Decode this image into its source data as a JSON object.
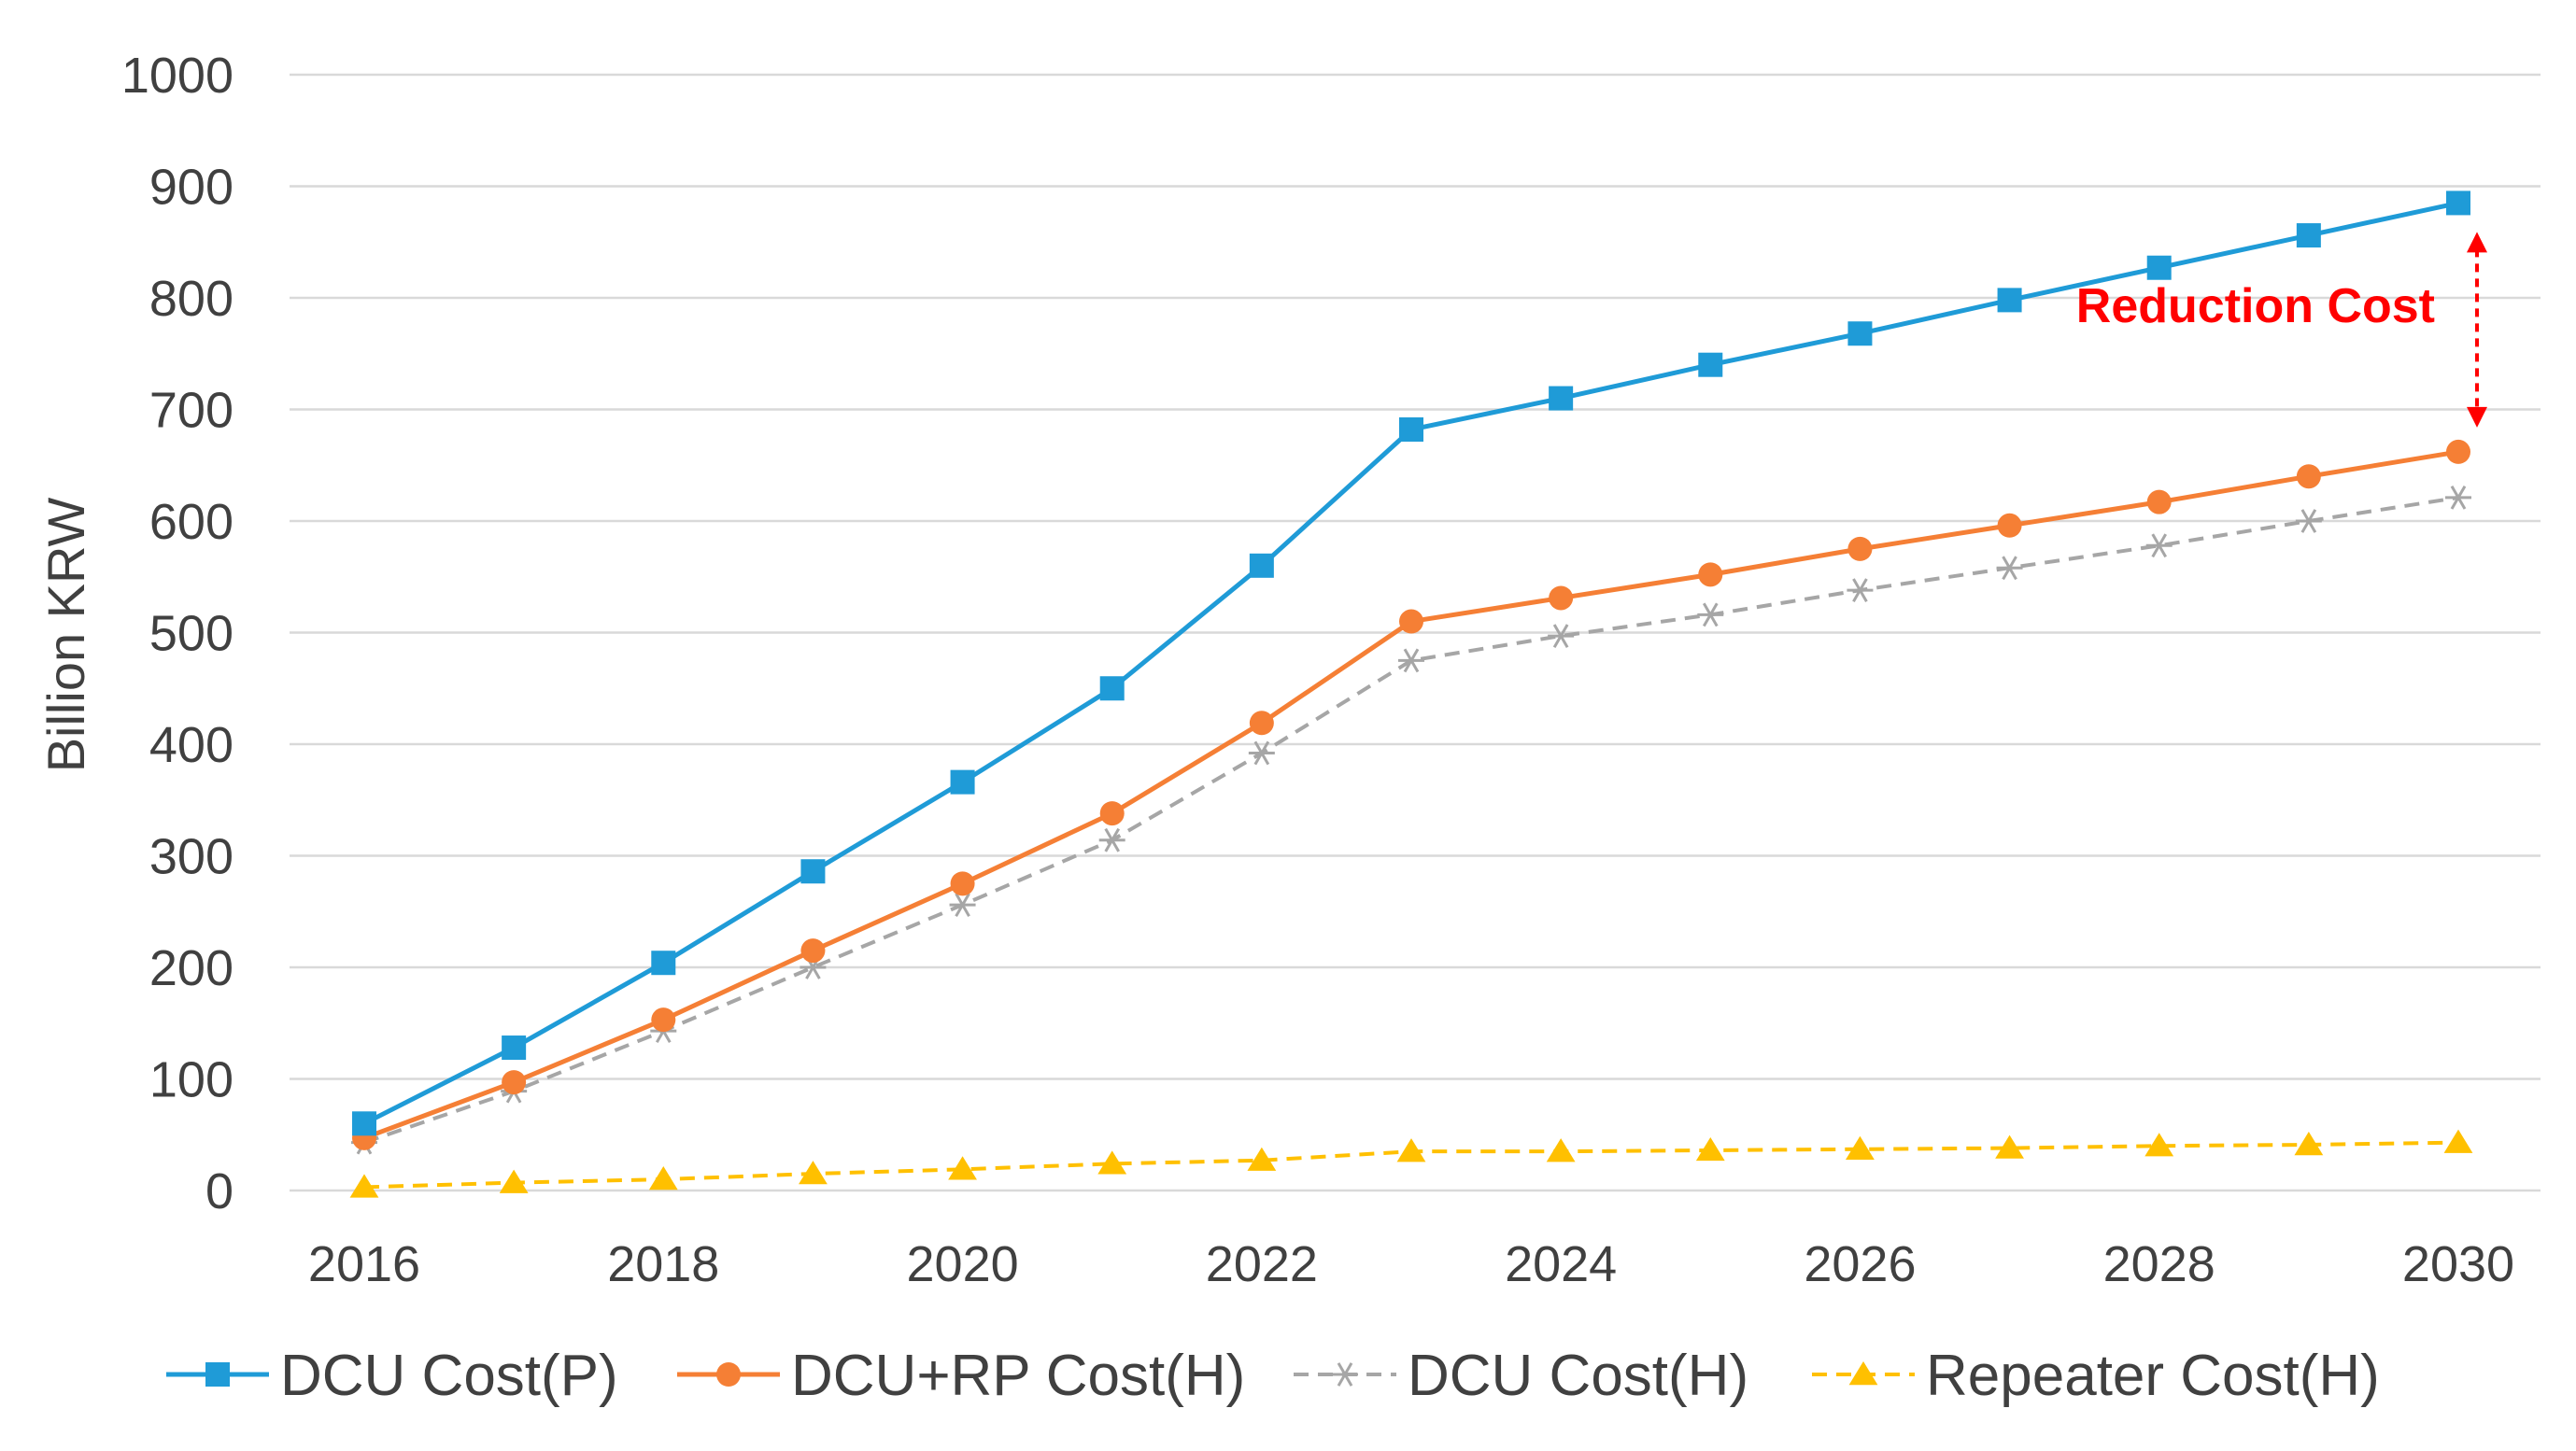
{
  "chart_data": {
    "type": "line",
    "title": "",
    "xlabel": "",
    "ylabel": "Billion KRW",
    "ylim": [
      0,
      1000
    ],
    "yticks": [
      0,
      100,
      200,
      300,
      400,
      500,
      600,
      700,
      800,
      900,
      1000
    ],
    "xlim": [
      2016,
      2030
    ],
    "xticks": [
      2016,
      2018,
      2020,
      2022,
      2024,
      2026,
      2028,
      2030
    ],
    "x": [
      2016,
      2017,
      2018,
      2019,
      2020,
      2021,
      2022,
      2023,
      2024,
      2025,
      2026,
      2027,
      2028,
      2029,
      2030
    ],
    "grid": "horizontal",
    "legend_position": "bottom",
    "series": [
      {
        "name": "DCU Cost(P)",
        "color": "#1f9bd7",
        "marker": "square",
        "dashed": false,
        "values": [
          60,
          128,
          204,
          286,
          366,
          450,
          560,
          682,
          710,
          740,
          768,
          798,
          827,
          856,
          885
        ]
      },
      {
        "name": "DCU+RP Cost(H)",
        "color": "#f57f35",
        "marker": "circle",
        "dashed": false,
        "values": [
          47,
          97,
          153,
          215,
          275,
          338,
          419,
          510,
          531,
          552,
          575,
          596,
          617,
          640,
          662
        ]
      },
      {
        "name": "DCU Cost(H)",
        "color": "#a6a6a6",
        "marker": "star",
        "dashed": true,
        "values": [
          43,
          89,
          143,
          200,
          256,
          314,
          392,
          475,
          497,
          516,
          538,
          558,
          578,
          600,
          621
        ]
      },
      {
        "name": "Repeater Cost(H)",
        "color": "#ffc000",
        "marker": "triangle",
        "dashed": true,
        "values": [
          3,
          7,
          10,
          15,
          19,
          24,
          27,
          35,
          35,
          36,
          37,
          38,
          40,
          41,
          43
        ]
      }
    ],
    "annotations": [
      {
        "text": "Reduction Cost",
        "color": "#ff0000",
        "x": 2030,
        "from": 662,
        "to": 885
      }
    ]
  }
}
